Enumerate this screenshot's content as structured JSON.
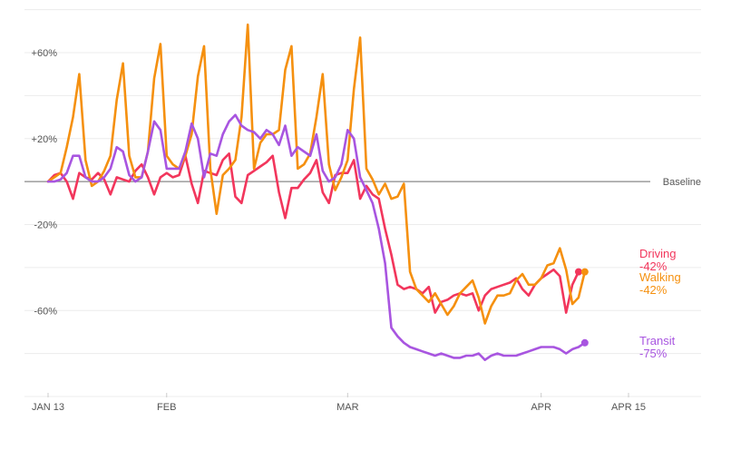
{
  "chart_data": {
    "type": "line",
    "title": "",
    "xlabel": "",
    "ylabel": "",
    "ylim": [
      -100,
      80
    ],
    "xlim": [
      "2020-01-13",
      "2020-04-15"
    ],
    "grid": true,
    "y_ticks": [
      {
        "value": 60,
        "label": "+60%"
      },
      {
        "value": 20,
        "label": "+20%"
      },
      {
        "value": -20,
        "label": "-20%"
      },
      {
        "value": -60,
        "label": "-60%"
      }
    ],
    "x_ticks": [
      {
        "date": "2020-01-13",
        "label": "JAN 13"
      },
      {
        "date": "2020-02-01",
        "label": "FEB"
      },
      {
        "date": "2020-03-01",
        "label": "MAR"
      },
      {
        "date": "2020-04-01",
        "label": "APR"
      },
      {
        "date": "2020-04-15",
        "label": "APR 15"
      }
    ],
    "baseline": {
      "value": 0,
      "label": "Baseline"
    },
    "start_date": "2020-01-13",
    "series": [
      {
        "name": "Driving",
        "end_label": "-42%",
        "color": "#f2365c",
        "values": [
          0,
          3,
          4,
          0,
          -8,
          4,
          2,
          1,
          4,
          1,
          -6,
          2,
          1,
          0,
          5,
          8,
          2,
          -6,
          2,
          4,
          2,
          3,
          12,
          -1,
          -10,
          5,
          4,
          3,
          10,
          13,
          -7,
          -10,
          3,
          5,
          7,
          9,
          12,
          -5,
          -17,
          -3,
          -3,
          1,
          4,
          10,
          -5,
          -10,
          3,
          4,
          4,
          10,
          -8,
          -2,
          -6,
          -8,
          -22,
          -34,
          -48,
          -50,
          -49,
          -50,
          -52,
          -49,
          -61,
          -56,
          -55,
          -53,
          -52,
          -53,
          -52,
          -60,
          -53,
          -50,
          -49,
          -48,
          -47,
          -45,
          -50,
          -53,
          -48,
          -45,
          -43,
          -41,
          -44,
          -61,
          -48,
          -42
        ],
        "end_value": -42
      },
      {
        "name": "Walking",
        "end_label": "-42%",
        "color": "#f5900f",
        "values": [
          0,
          2,
          4,
          16,
          30,
          50,
          10,
          -2,
          0,
          5,
          12,
          38,
          55,
          12,
          2,
          2,
          14,
          48,
          64,
          12,
          8,
          6,
          12,
          22,
          49,
          63,
          6,
          -15,
          3,
          6,
          10,
          30,
          73,
          6,
          18,
          22,
          22,
          24,
          52,
          63,
          6,
          8,
          13,
          30,
          50,
          8,
          -4,
          2,
          10,
          43,
          67,
          6,
          1,
          -6,
          -1,
          -8,
          -7,
          -1,
          -42,
          -50,
          -53,
          -56,
          -52,
          -57,
          -62,
          -58,
          -52,
          -49,
          -46,
          -54,
          -66,
          -58,
          -53,
          -53,
          -52,
          -46,
          -43,
          -48,
          -48,
          -45,
          -39,
          -38,
          -31,
          -41,
          -57,
          -54,
          -42
        ],
        "end_value": -42
      },
      {
        "name": "Transit",
        "end_label": "-75%",
        "color": "#a855e0",
        "values": [
          0,
          0,
          1,
          4,
          12,
          12,
          2,
          0,
          0,
          2,
          6,
          16,
          14,
          3,
          0,
          2,
          14,
          28,
          24,
          6,
          6,
          6,
          14,
          27,
          20,
          2,
          13,
          12,
          22,
          28,
          31,
          26,
          24,
          23,
          20,
          24,
          22,
          17,
          26,
          12,
          16,
          14,
          12,
          22,
          5,
          0,
          2,
          8,
          24,
          20,
          2,
          -4,
          -10,
          -22,
          -38,
          -68,
          -72,
          -75,
          -77,
          -78,
          -79,
          -80,
          -81,
          -80,
          -81,
          -82,
          -82,
          -81,
          -81,
          -80,
          -83,
          -81,
          -80,
          -81,
          -81,
          -81,
          -80,
          -79,
          -78,
          -77,
          -77,
          -77,
          -78,
          -80,
          -78,
          -77,
          -75
        ],
        "end_value": -75
      }
    ]
  }
}
